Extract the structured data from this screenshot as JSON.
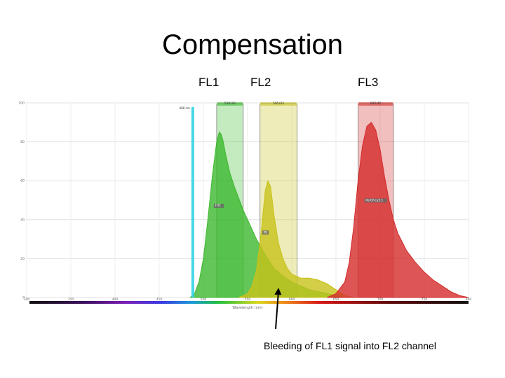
{
  "title": "Compensation",
  "channels": {
    "fl1": "FL1",
    "fl2": "FL2",
    "fl3": "FL3"
  },
  "caption": "Bleeding of FL1 signal into FL2 channel",
  "colors": {
    "green": "#3cb82e",
    "yellow": "#c8c21a",
    "red": "#d42a2a",
    "laser": "#33d0e8"
  },
  "chart_data": {
    "type": "area",
    "xlabel": "Wavelength (nm)",
    "xlim": [
      300,
      800
    ],
    "ylim": [
      0,
      100
    ],
    "x_ticks": [
      "300",
      "350",
      "400",
      "450",
      "500",
      "550",
      "600",
      "650",
      "700",
      "750",
      "800"
    ],
    "y_ticks": [
      "0",
      "20",
      "40",
      "60",
      "80",
      "100"
    ],
    "grid": true,
    "laser": {
      "label": "488 nm",
      "x": 488
    },
    "filters": [
      {
        "channel": "FL1",
        "label": "530/30",
        "from": 515,
        "to": 545,
        "color": "#3cb82e"
      },
      {
        "channel": "FL2",
        "label": "585/42",
        "from": 564,
        "to": 606,
        "color": "#c8c21a"
      },
      {
        "channel": "FL3",
        "label": "695/40",
        "from": 675,
        "to": 715,
        "color": "#d42a2a"
      }
    ],
    "series": [
      {
        "name": "FITC",
        "color": "#3cb82e",
        "x": [
          485,
          490,
          495,
          500,
          505,
          510,
          515,
          518,
          520,
          522,
          525,
          530,
          535,
          540,
          545,
          550,
          560,
          570,
          580,
          590,
          600,
          610,
          620,
          630,
          640,
          650,
          660
        ],
        "y": [
          0,
          2,
          8,
          20,
          40,
          62,
          80,
          85,
          84,
          81,
          74,
          64,
          57,
          51,
          45,
          40,
          30,
          22,
          15,
          11,
          8,
          6,
          4,
          3,
          2,
          1,
          0
        ]
      },
      {
        "name": "PE",
        "color": "#c8c21a",
        "x": [
          540,
          550,
          555,
          560,
          565,
          570,
          573,
          576,
          580,
          585,
          590,
          595,
          600,
          610,
          620,
          630,
          640,
          650,
          660,
          670
        ],
        "y": [
          0,
          2,
          6,
          14,
          32,
          55,
          60,
          57,
          42,
          28,
          20,
          15,
          12,
          10,
          10,
          9,
          7,
          4,
          1,
          0
        ]
      },
      {
        "name": "PerCP-Cy5.5",
        "color": "#d42a2a",
        "x": [
          640,
          650,
          660,
          665,
          670,
          675,
          680,
          685,
          690,
          695,
          700,
          705,
          710,
          715,
          720,
          730,
          740,
          750,
          760,
          770,
          780,
          790,
          800
        ],
        "y": [
          0,
          2,
          8,
          18,
          36,
          60,
          78,
          88,
          90,
          86,
          76,
          62,
          50,
          40,
          33,
          24,
          18,
          13,
          9,
          6,
          3,
          1,
          0
        ]
      }
    ],
    "annotation": {
      "text": "Bleeding of FL1 signal into FL2 channel",
      "target_x": 585,
      "target_y": 5
    }
  }
}
